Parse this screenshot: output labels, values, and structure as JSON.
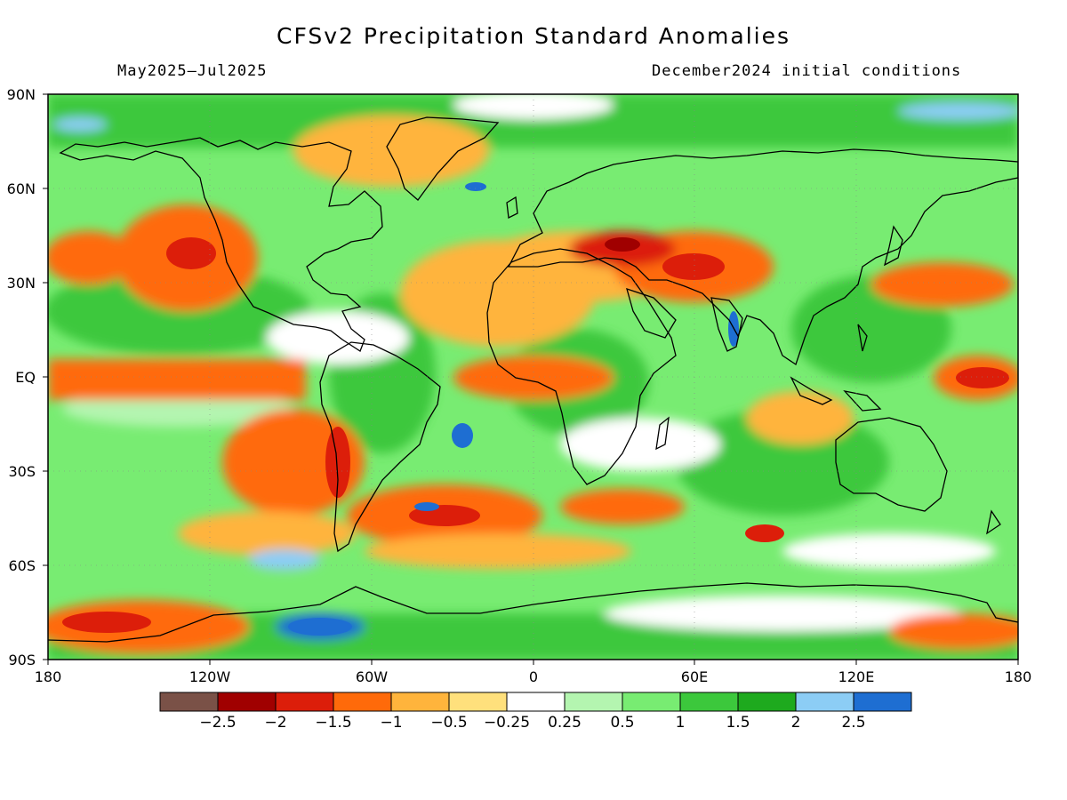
{
  "title": "CFSv2 Precipitation Standard Anomalies",
  "period": "May2025—Jul2025",
  "init": "December2024 initial conditions",
  "lat_labels": [
    "90N",
    "60N",
    "30N",
    "EQ",
    "30S",
    "60S",
    "90S"
  ],
  "lon_labels": [
    "180",
    "120W",
    "60W",
    "0",
    "60E",
    "120E",
    "180"
  ],
  "colorbar": {
    "colors": [
      "#7a5147",
      "#a00000",
      "#dc1e0a",
      "#ff6a0a",
      "#ffb43c",
      "#ffe07c",
      "#ffffff",
      "#b4f5b0",
      "#78ec72",
      "#3cc83c",
      "#1eaa1e",
      "#8ccdf5",
      "#1e6ed2"
    ],
    "labels": [
      "−2.5",
      "−2",
      "−1.5",
      "−1",
      "−0.5",
      "−0.25",
      "0.25",
      "0.5",
      "1",
      "1.5",
      "2",
      "2.5"
    ]
  }
}
